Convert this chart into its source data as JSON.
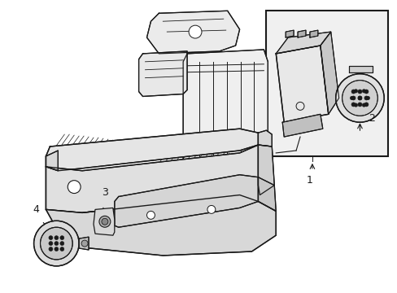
{
  "background_color": "#ffffff",
  "line_color": "#1a1a1a",
  "fig_width": 4.89,
  "fig_height": 3.6,
  "dpi": 100,
  "label1": "1",
  "label2": "2",
  "label3": "3",
  "label4": "4"
}
